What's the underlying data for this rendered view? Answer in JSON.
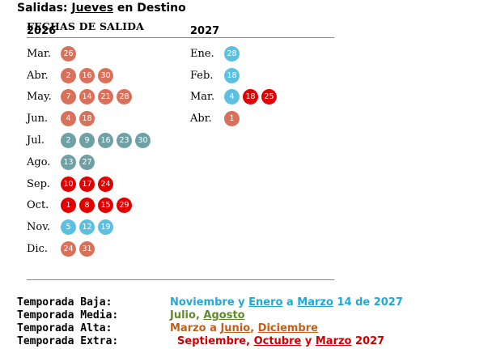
{
  "title": {
    "prefix": "Salidas: ",
    "day": "Jueves",
    "suffix": " en Destino"
  },
  "section_label": "FECHAS DE SALIDA",
  "colors": {
    "orange": "#d9705a",
    "teal": "#6fa0a3",
    "cyan": "#5bc0e1",
    "red": "#e00000"
  },
  "col2026": {
    "year": "2026",
    "months": [
      {
        "name": "Mar.",
        "days": [
          {
            "d": "26",
            "c": "orange"
          }
        ]
      },
      {
        "name": "Abr.",
        "days": [
          {
            "d": "2",
            "c": "orange"
          },
          {
            "d": "16",
            "c": "orange"
          },
          {
            "d": "30",
            "c": "orange"
          }
        ]
      },
      {
        "name": "May.",
        "days": [
          {
            "d": "7",
            "c": "orange"
          },
          {
            "d": "14",
            "c": "orange"
          },
          {
            "d": "21",
            "c": "orange"
          },
          {
            "d": "28",
            "c": "orange"
          }
        ]
      },
      {
        "name": "Jun.",
        "days": [
          {
            "d": "4",
            "c": "orange"
          },
          {
            "d": "18",
            "c": "orange"
          }
        ]
      },
      {
        "name": "Jul.",
        "days": [
          {
            "d": "2",
            "c": "teal"
          },
          {
            "d": "9",
            "c": "teal"
          },
          {
            "d": "16",
            "c": "teal"
          },
          {
            "d": "23",
            "c": "teal"
          },
          {
            "d": "30",
            "c": "teal"
          }
        ]
      },
      {
        "name": "Ago.",
        "days": [
          {
            "d": "13",
            "c": "teal"
          },
          {
            "d": "27",
            "c": "teal"
          }
        ]
      },
      {
        "name": "Sep.",
        "days": [
          {
            "d": "10",
            "c": "red"
          },
          {
            "d": "17",
            "c": "red"
          },
          {
            "d": "24",
            "c": "red"
          }
        ]
      },
      {
        "name": "Oct.",
        "days": [
          {
            "d": "1",
            "c": "red"
          },
          {
            "d": "8",
            "c": "red"
          },
          {
            "d": "15",
            "c": "red"
          },
          {
            "d": "29",
            "c": "red"
          }
        ]
      },
      {
        "name": "Nov.",
        "days": [
          {
            "d": "5",
            "c": "cyan"
          },
          {
            "d": "12",
            "c": "cyan"
          },
          {
            "d": "19",
            "c": "cyan"
          }
        ]
      },
      {
        "name": "Dic.",
        "days": [
          {
            "d": "24",
            "c": "orange"
          },
          {
            "d": "31",
            "c": "orange"
          }
        ]
      }
    ]
  },
  "col2027": {
    "year": "2027",
    "months": [
      {
        "name": "Ene.",
        "days": [
          {
            "d": "28",
            "c": "cyan"
          }
        ]
      },
      {
        "name": "Feb.",
        "days": [
          {
            "d": "18",
            "c": "cyan"
          }
        ]
      },
      {
        "name": "Mar.",
        "days": [
          {
            "d": "4",
            "c": "cyan"
          },
          {
            "d": "18",
            "c": "red"
          },
          {
            "d": "25",
            "c": "red"
          }
        ]
      },
      {
        "name": "Abr.",
        "days": [
          {
            "d": "1",
            "c": "orange"
          }
        ]
      }
    ]
  },
  "legend": [
    {
      "label": "Temporada Baja:",
      "color": "#20a8d8",
      "parts": [
        {
          "t": "Noviembre",
          "u": false
        },
        {
          "t": " y ",
          "u": false
        },
        {
          "t": "Enero",
          "u": true
        },
        {
          "t": " a ",
          "u": false
        },
        {
          "t": "Marzo",
          "u": true
        },
        {
          "t": " 14 de 2027",
          "u": false
        }
      ]
    },
    {
      "label": "Temporada Media:",
      "color": "#5e8a2a",
      "parts": [
        {
          "t": "Julio",
          "u": false
        },
        {
          "t": ", ",
          "u": false
        },
        {
          "t": "Agosto",
          "u": true
        }
      ]
    },
    {
      "label": "Temporada Alta:",
      "color": "#c0601a",
      "parts": [
        {
          "t": "Marzo",
          "u": false
        },
        {
          "t": " a ",
          "u": false
        },
        {
          "t": "Junio",
          "u": true
        },
        {
          "t": ", ",
          "u": false
        },
        {
          "t": "Diciembre",
          "u": true
        }
      ]
    },
    {
      "label": "Temporada Extra:",
      "color": "#d00000",
      "parts": [
        {
          "t": "  Septiembre",
          "u": false
        },
        {
          "t": ", ",
          "u": false
        },
        {
          "t": "Octubre",
          "u": true
        },
        {
          "t": " y ",
          "u": false
        },
        {
          "t": "Marzo",
          "u": true
        },
        {
          "t": " 2027",
          "u": false
        }
      ]
    }
  ]
}
